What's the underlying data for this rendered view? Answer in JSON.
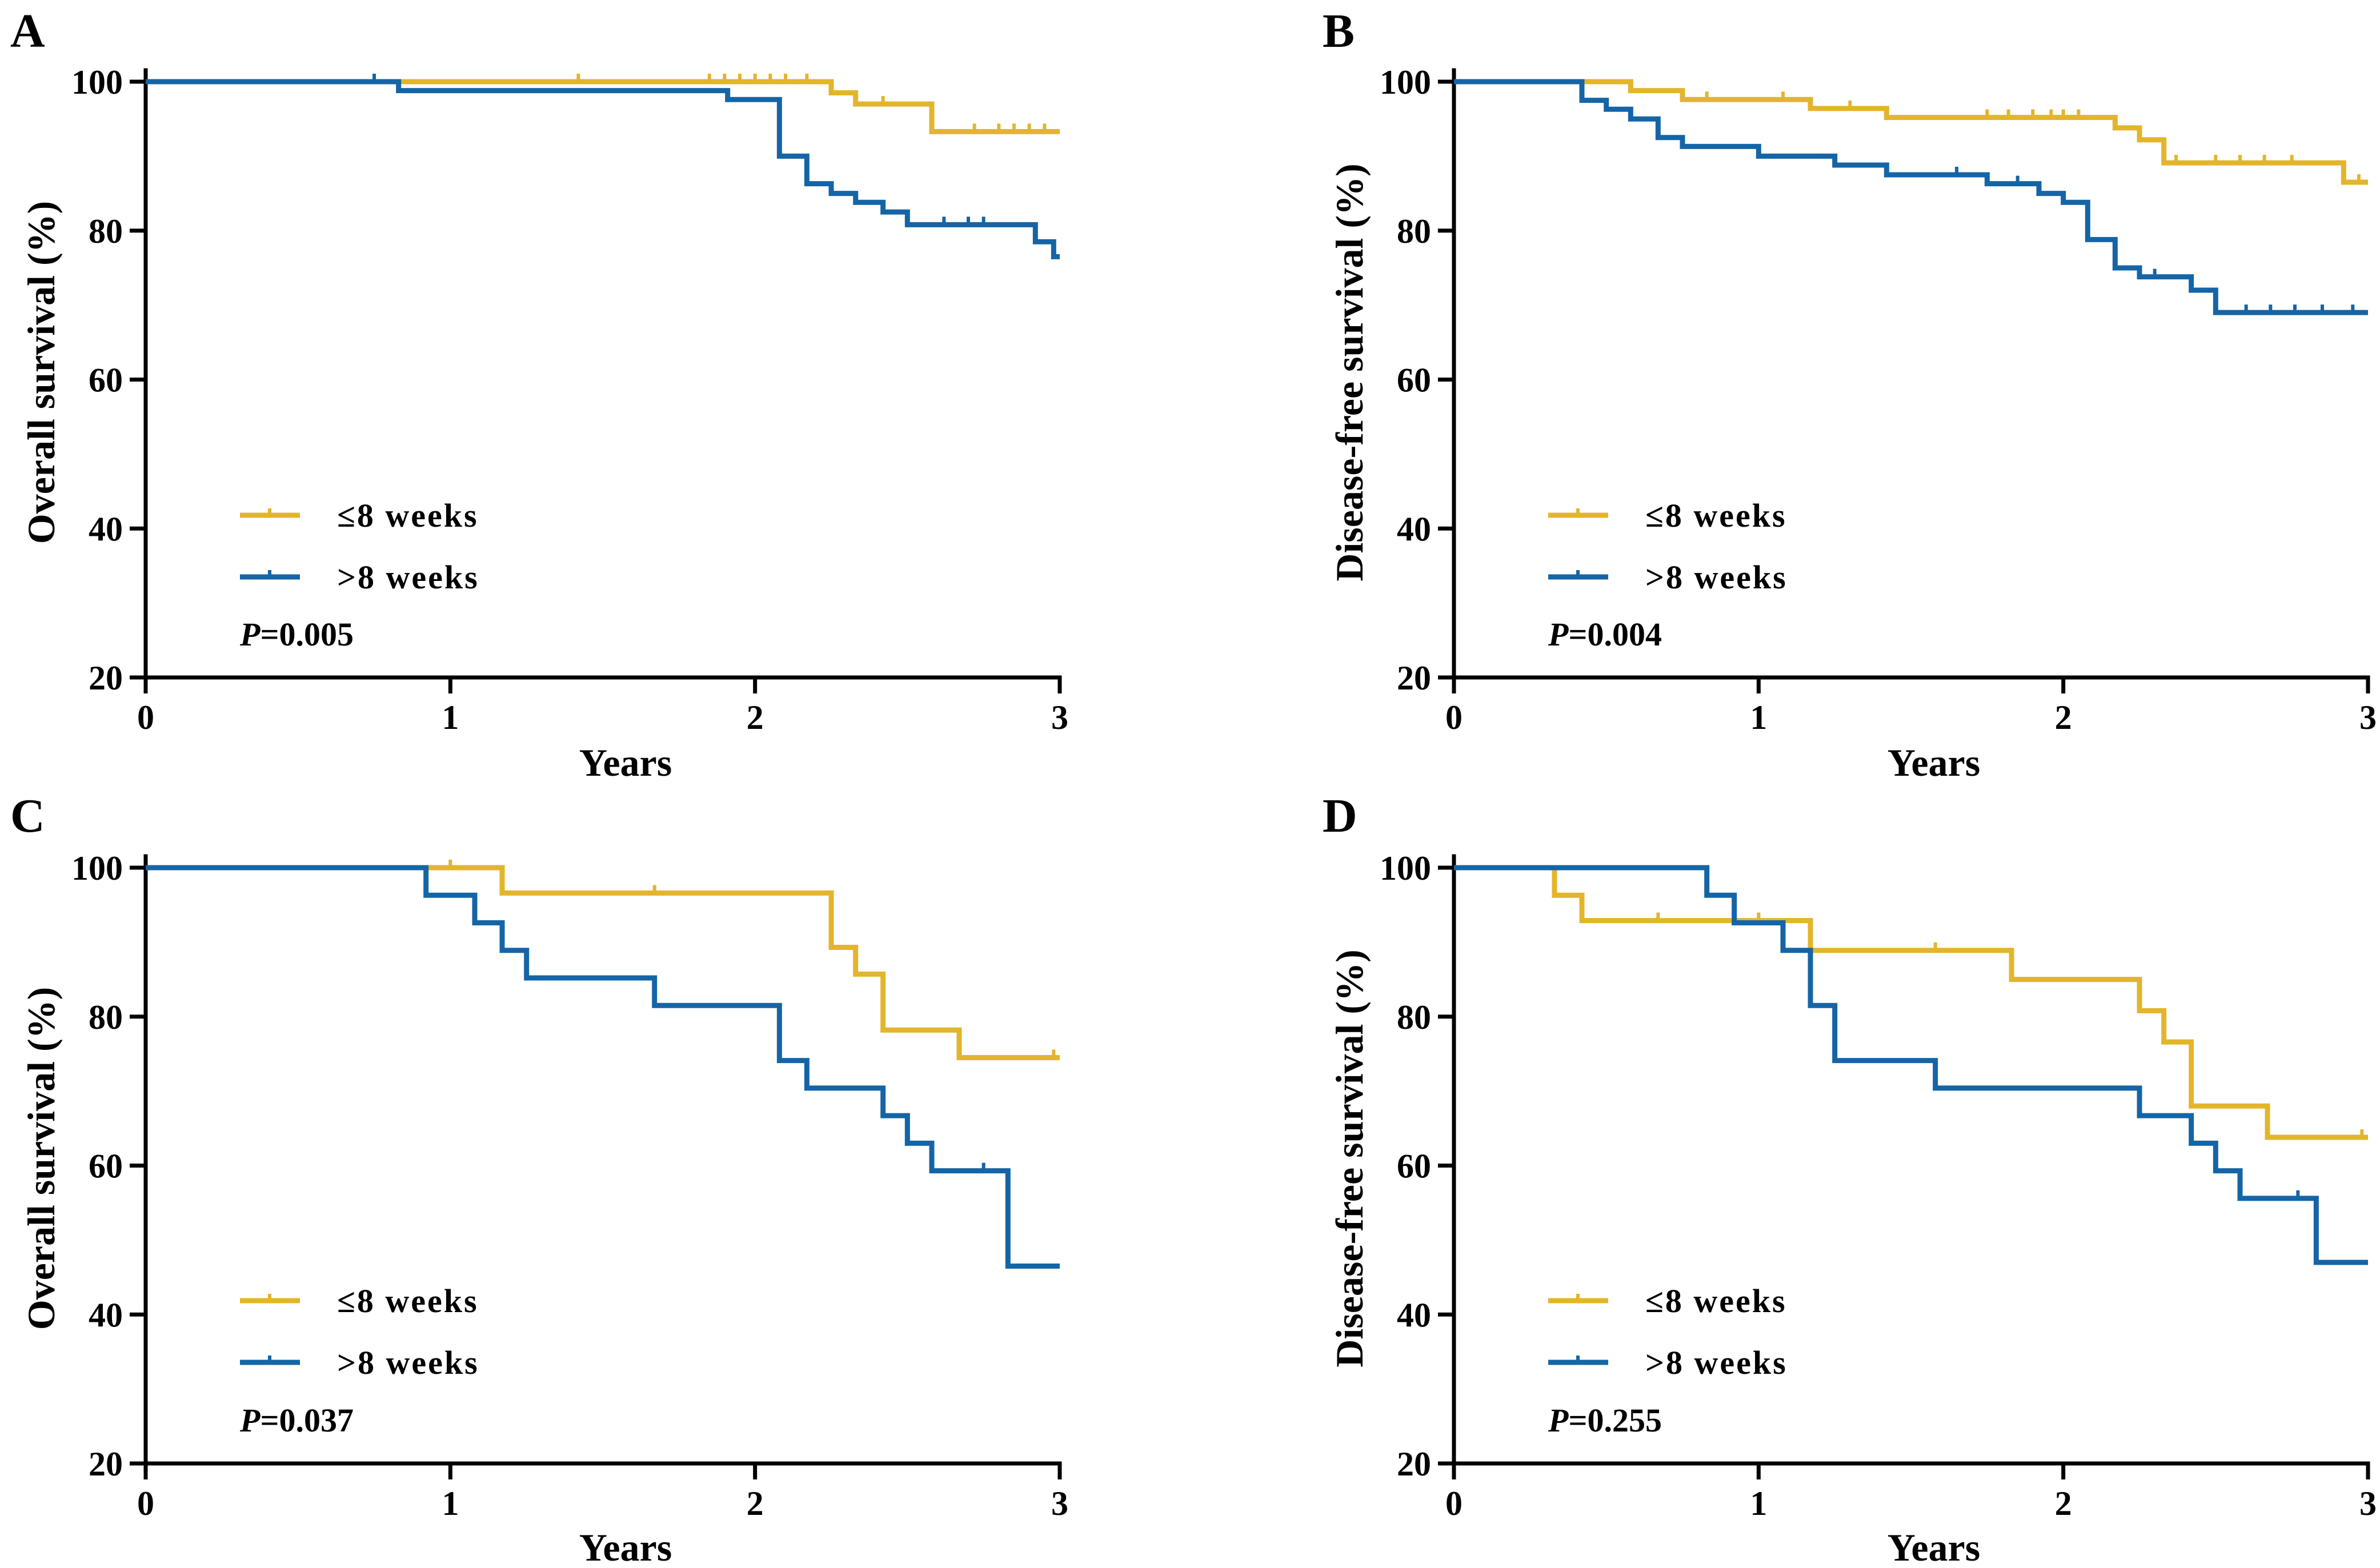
{
  "chart_data": [
    {
      "type": "line",
      "panel": "A",
      "xlabel": "Years",
      "ylabel": "Overall survival (%)",
      "xlim": [
        0,
        3
      ],
      "ylim": [
        20,
        100
      ],
      "xticks": [
        "0",
        "1",
        "2",
        "3"
      ],
      "yticks": [
        "20",
        "40",
        "60",
        "80",
        "100"
      ],
      "legend": [
        "≤8 weeks",
        ">8 weeks"
      ],
      "p_prefix": "P",
      "p_value": "=0.005",
      "colors": [
        "#E3B52C",
        "#1565A6"
      ],
      "series": [
        {
          "name": "≤8 weeks",
          "steps": [
            [
              0,
              100
            ],
            [
              2.25,
              98.5
            ],
            [
              2.33,
              97.0
            ],
            [
              2.58,
              93.3
            ],
            [
              3.0,
              93.3
            ]
          ],
          "censored": [
            [
              1.42,
              100
            ],
            [
              1.85,
              100
            ],
            [
              1.9,
              100
            ],
            [
              1.95,
              100
            ],
            [
              2.0,
              100
            ],
            [
              2.05,
              100
            ],
            [
              2.1,
              100
            ],
            [
              2.17,
              100
            ],
            [
              2.42,
              97.0
            ],
            [
              2.72,
              93.3
            ],
            [
              2.8,
              93.3
            ],
            [
              2.85,
              93.3
            ],
            [
              2.9,
              93.3
            ],
            [
              2.95,
              93.3
            ]
          ]
        },
        {
          "name": ">8 weeks",
          "steps": [
            [
              0,
              100
            ],
            [
              0.83,
              98.8
            ],
            [
              1.91,
              97.6
            ],
            [
              2.08,
              90.0
            ],
            [
              2.17,
              86.3
            ],
            [
              2.25,
              85.0
            ],
            [
              2.33,
              83.8
            ],
            [
              2.42,
              82.5
            ],
            [
              2.5,
              80.8
            ],
            [
              2.92,
              78.5
            ],
            [
              2.98,
              76.5
            ],
            [
              3.0,
              76.5
            ]
          ],
          "censored": [
            [
              0.75,
              100
            ],
            [
              2.62,
              80.8
            ],
            [
              2.7,
              80.8
            ],
            [
              2.75,
              80.8
            ]
          ]
        }
      ]
    },
    {
      "type": "line",
      "panel": "B",
      "xlabel": "Years",
      "ylabel": "Disease-free survival (%)",
      "xlim": [
        0,
        3
      ],
      "ylim": [
        20,
        100
      ],
      "xticks": [
        "0",
        "1",
        "2",
        "3"
      ],
      "yticks": [
        "20",
        "40",
        "60",
        "80",
        "100"
      ],
      "legend": [
        "≤8 weeks",
        ">8 weeks"
      ],
      "p_prefix": "P",
      "p_value": "=0.004",
      "colors": [
        "#E3B52C",
        "#1565A6"
      ],
      "series": [
        {
          "name": "≤8 weeks",
          "steps": [
            [
              0,
              100
            ],
            [
              0.58,
              98.8
            ],
            [
              0.75,
              97.6
            ],
            [
              1.17,
              96.4
            ],
            [
              1.42,
              95.2
            ],
            [
              2.17,
              93.8
            ],
            [
              2.25,
              92.2
            ],
            [
              2.33,
              89.1
            ],
            [
              2.92,
              86.5
            ],
            [
              3.0,
              86.5
            ]
          ],
          "censored": [
            [
              0.83,
              97.6
            ],
            [
              1.08,
              97.6
            ],
            [
              1.3,
              96.4
            ],
            [
              1.75,
              95.2
            ],
            [
              1.82,
              95.2
            ],
            [
              1.9,
              95.2
            ],
            [
              1.96,
              95.2
            ],
            [
              2.0,
              95.2
            ],
            [
              2.05,
              95.2
            ],
            [
              2.37,
              89.1
            ],
            [
              2.5,
              89.1
            ],
            [
              2.58,
              89.1
            ],
            [
              2.66,
              89.1
            ],
            [
              2.75,
              89.1
            ],
            [
              2.97,
              86.5
            ]
          ]
        },
        {
          "name": ">8 weeks",
          "steps": [
            [
              0,
              100
            ],
            [
              0.42,
              97.5
            ],
            [
              0.5,
              96.3
            ],
            [
              0.58,
              95.0
            ],
            [
              0.67,
              92.5
            ],
            [
              0.75,
              91.3
            ],
            [
              1.0,
              90.0
            ],
            [
              1.25,
              88.8
            ],
            [
              1.42,
              87.5
            ],
            [
              1.75,
              86.3
            ],
            [
              1.92,
              85.0
            ],
            [
              2.0,
              83.8
            ],
            [
              2.08,
              78.8
            ],
            [
              2.17,
              75.0
            ],
            [
              2.25,
              73.8
            ],
            [
              2.42,
              72.0
            ],
            [
              2.5,
              69.0
            ],
            [
              3.0,
              69.0
            ]
          ],
          "censored": [
            [
              1.65,
              87.5
            ],
            [
              1.85,
              86.3
            ],
            [
              2.3,
              73.8
            ],
            [
              2.6,
              69.0
            ],
            [
              2.68,
              69.0
            ],
            [
              2.76,
              69.0
            ],
            [
              2.85,
              69.0
            ],
            [
              2.95,
              69.0
            ]
          ]
        }
      ]
    },
    {
      "type": "line",
      "panel": "C",
      "xlabel": "Years",
      "ylabel": "Overall survival (%)",
      "xlim": [
        0,
        3
      ],
      "ylim": [
        20,
        100
      ],
      "xticks": [
        "0",
        "1",
        "2",
        "3"
      ],
      "yticks": [
        "20",
        "40",
        "60",
        "80",
        "100"
      ],
      "legend": [
        "≤8 weeks",
        ">8 weeks"
      ],
      "p_prefix": "P",
      "p_value": "=0.037",
      "colors": [
        "#E3B52C",
        "#1565A6"
      ],
      "series": [
        {
          "name": "≤8 weeks",
          "steps": [
            [
              0,
              100
            ],
            [
              1.17,
              96.6
            ],
            [
              2.25,
              89.3
            ],
            [
              2.33,
              85.7
            ],
            [
              2.42,
              78.2
            ],
            [
              2.67,
              74.5
            ],
            [
              3.0,
              74.5
            ]
          ],
          "censored": [
            [
              1.0,
              100
            ],
            [
              1.67,
              96.6
            ],
            [
              2.98,
              74.5
            ]
          ]
        },
        {
          "name": ">8 weeks",
          "steps": [
            [
              0,
              100
            ],
            [
              0.92,
              96.3
            ],
            [
              1.08,
              92.6
            ],
            [
              1.17,
              88.9
            ],
            [
              1.25,
              85.2
            ],
            [
              1.67,
              81.5
            ],
            [
              2.08,
              74.1
            ],
            [
              2.17,
              70.4
            ],
            [
              2.42,
              66.7
            ],
            [
              2.5,
              63.0
            ],
            [
              2.58,
              59.3
            ],
            [
              2.83,
              46.5
            ],
            [
              3.0,
              46.5
            ]
          ],
          "censored": [
            [
              2.75,
              59.3
            ]
          ]
        }
      ]
    },
    {
      "type": "line",
      "panel": "D",
      "xlabel": "Years",
      "ylabel": "Disease-free survival (%)",
      "xlim": [
        0,
        3
      ],
      "ylim": [
        20,
        100
      ],
      "xticks": [
        "0",
        "1",
        "2",
        "3"
      ],
      "yticks": [
        "20",
        "40",
        "60",
        "80",
        "100"
      ],
      "legend": [
        "≤8 weeks",
        ">8 weeks"
      ],
      "p_prefix": "P",
      "p_value": "=0.255",
      "colors": [
        "#E3B52C",
        "#1565A6"
      ],
      "series": [
        {
          "name": "≤8 weeks",
          "steps": [
            [
              0,
              100
            ],
            [
              0.33,
              96.3
            ],
            [
              0.42,
              92.9
            ],
            [
              1.17,
              88.9
            ],
            [
              1.83,
              85.0
            ],
            [
              2.25,
              80.8
            ],
            [
              2.33,
              76.6
            ],
            [
              2.42,
              68.0
            ],
            [
              2.67,
              63.8
            ],
            [
              3.0,
              63.8
            ]
          ],
          "censored": [
            [
              0.67,
              92.9
            ],
            [
              1.0,
              92.9
            ],
            [
              1.58,
              88.9
            ],
            [
              2.98,
              63.8
            ]
          ]
        },
        {
          "name": ">8 weeks",
          "steps": [
            [
              0,
              100
            ],
            [
              0.83,
              96.3
            ],
            [
              0.92,
              92.6
            ],
            [
              1.08,
              88.9
            ],
            [
              1.17,
              81.5
            ],
            [
              1.25,
              74.1
            ],
            [
              1.58,
              70.4
            ],
            [
              2.25,
              66.7
            ],
            [
              2.42,
              63.0
            ],
            [
              2.5,
              59.3
            ],
            [
              2.58,
              55.6
            ],
            [
              2.83,
              47.0
            ],
            [
              3.0,
              47.0
            ]
          ],
          "censored": [
            [
              2.77,
              55.6
            ]
          ]
        }
      ]
    }
  ]
}
